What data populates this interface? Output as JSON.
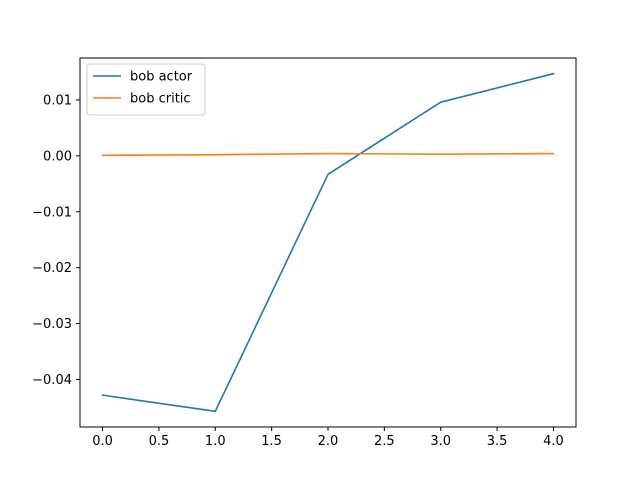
{
  "chart_data": {
    "type": "line",
    "title": "",
    "xlabel": "",
    "ylabel": "",
    "x": [
      0,
      1,
      2,
      3,
      4
    ],
    "xlim": [
      -0.2,
      4.2
    ],
    "ylim": [
      -0.0485,
      0.0175
    ],
    "xticks": [
      0.0,
      0.5,
      1.0,
      1.5,
      2.0,
      2.5,
      3.0,
      3.5,
      4.0
    ],
    "yticks": [
      -0.04,
      -0.03,
      -0.02,
      -0.01,
      0.0,
      0.01
    ],
    "xtick_labels": [
      "0.0",
      "0.5",
      "1.0",
      "1.5",
      "2.0",
      "2.5",
      "3.0",
      "3.5",
      "4.0"
    ],
    "ytick_labels": [
      "−0.04",
      "−0.03",
      "−0.02",
      "−0.01",
      "0.00",
      "0.01"
    ],
    "grid": false,
    "legend": "top-left",
    "series": [
      {
        "name": "bob actor",
        "color": "#1f77b4",
        "values": [
          -0.0428,
          -0.0457,
          -0.0033,
          0.0096,
          0.0147
        ]
      },
      {
        "name": "bob critic",
        "color": "#ff7f0e",
        "values": [
          0.0001,
          0.0002,
          0.0004,
          0.0003,
          0.0004
        ]
      }
    ]
  }
}
